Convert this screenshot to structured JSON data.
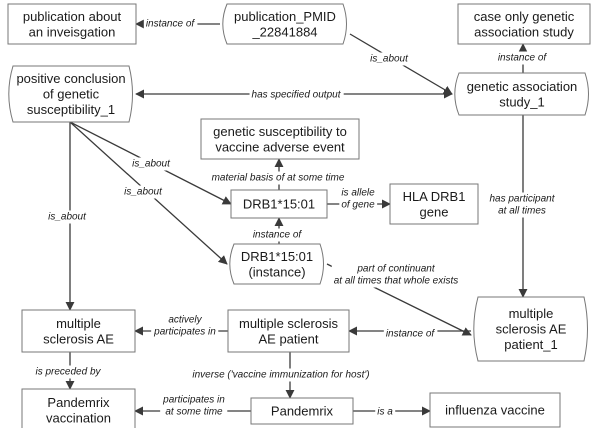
{
  "nodes": {
    "pub_invest": [
      "publication about",
      "an inveisgation"
    ],
    "pub_pmid": [
      "publication_PMID",
      "_22841884"
    ],
    "case_only": [
      "case only genetic",
      "association study"
    ],
    "pos_concl": [
      "positive conclusion",
      "of genetic",
      "susceptibility_1"
    ],
    "gas1": [
      "genetic association",
      "study_1"
    ],
    "gen_susc": [
      "genetic susceptibility to",
      "vaccine adverse event"
    ],
    "drb1": [
      "DRB1*15:01"
    ],
    "hla": [
      "HLA DRB1",
      "gene"
    ],
    "drb1_inst": [
      "DRB1*15:01",
      "(instance)"
    ],
    "ms_ae": [
      "multiple",
      "sclerosis  AE"
    ],
    "ms_patient": [
      "multiple sclerosis",
      "AE patient"
    ],
    "ms_patient1": [
      "multiple",
      "sclerosis AE",
      "patient_1"
    ],
    "pandemrix_vacc": [
      "Pandemrix",
      "vaccination"
    ],
    "pandemrix": [
      "Pandemrix"
    ],
    "flu": [
      "influenza vaccine"
    ]
  },
  "edges": {
    "pmid_instance": [
      "instance of"
    ],
    "pmid_about": [
      "is_about"
    ],
    "gas_instance": [
      "instance of"
    ],
    "gas_output": [
      "has specified output"
    ],
    "concl_about_drb1": [
      "is_about"
    ],
    "concl_about_inst": [
      "is_about"
    ],
    "concl_about_ae": [
      "is_about"
    ],
    "drb1_basis": [
      "material basis of at some time"
    ],
    "drb1_allele": [
      "is allele",
      "of gene"
    ],
    "inst_instance": [
      "instance of"
    ],
    "inst_part": [
      "part of continuant",
      "at all times that whole exists"
    ],
    "gas_participant": [
      "has participant",
      "at all times"
    ],
    "patient1_instance": [
      "instance of"
    ],
    "patient_ae": [
      "actively",
      "participates in"
    ],
    "ae_preceded": [
      "is preceded by"
    ],
    "patient_inverse": [
      "inverse ('vaccine immunization for host')"
    ],
    "pandemrix_participates": [
      "participates in",
      "at some time"
    ],
    "pandemrix_isa": [
      "is a"
    ]
  }
}
